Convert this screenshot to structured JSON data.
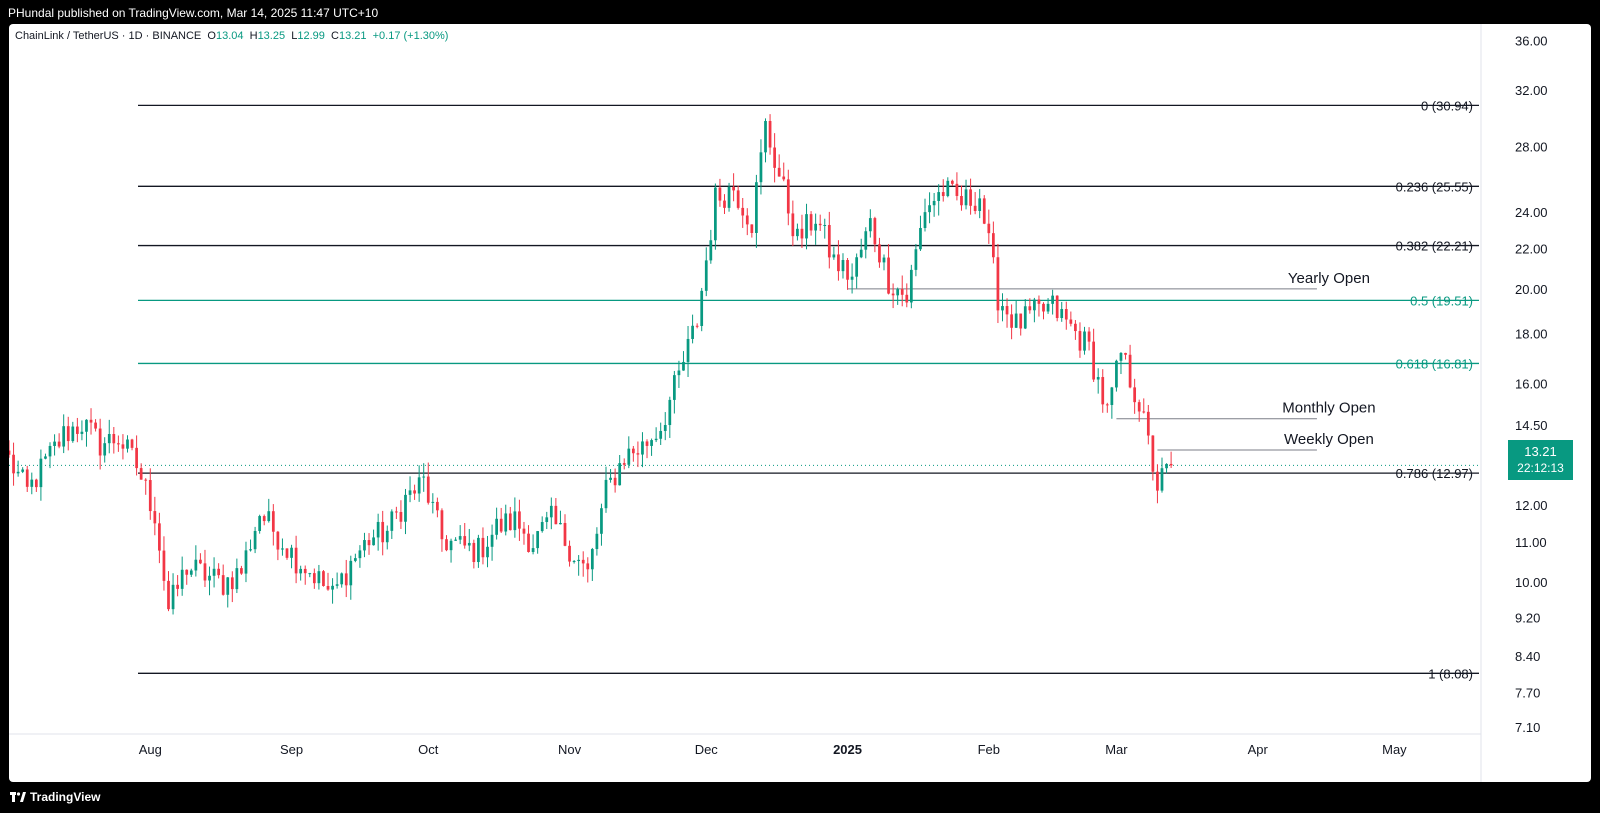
{
  "header": {
    "published_by": "PHundal published on TradingView.com, Mar 14, 2025 11:47 UTC+10"
  },
  "footer": {
    "brand": "TradingView"
  },
  "legend": {
    "symbol": "ChainLink / TetherUS · 1D · BINANCE",
    "o_label": "O",
    "o": "13.04",
    "h_label": "H",
    "h": "13.25",
    "l_label": "L",
    "l": "12.99",
    "c_label": "C",
    "c": "13.21",
    "change": "+0.17 (+1.30%)"
  },
  "last_price": {
    "price": "13.21",
    "countdown": "22:12:13"
  },
  "colors": {
    "up": "#089981",
    "down": "#f23645",
    "fib_green": "#089981",
    "fib_black": "#131722",
    "level": "#9598a1"
  },
  "chart_data": {
    "type": "candlestick",
    "title": "",
    "y_scale": "log",
    "y_ticks": [
      "36.00",
      "32.00",
      "28.00",
      "24.00",
      "22.00",
      "20.00",
      "18.00",
      "16.00",
      "14.50",
      "12.00",
      "11.00",
      "10.00",
      "9.20",
      "8.40",
      "7.70",
      "7.10"
    ],
    "x_ticks": [
      {
        "label": "Aug",
        "date": "2024-08-01",
        "bold": false
      },
      {
        "label": "Sep",
        "date": "2024-09-01",
        "bold": false
      },
      {
        "label": "Oct",
        "date": "2024-10-01",
        "bold": false
      },
      {
        "label": "Nov",
        "date": "2024-11-01",
        "bold": false
      },
      {
        "label": "Dec",
        "date": "2024-12-01",
        "bold": false
      },
      {
        "label": "2025",
        "date": "2025-01-01",
        "bold": true
      },
      {
        "label": "Feb",
        "date": "2025-02-01",
        "bold": false
      },
      {
        "label": "Mar",
        "date": "2025-03-01",
        "bold": false
      },
      {
        "label": "Apr",
        "date": "2025-04-01",
        "bold": false
      },
      {
        "label": "May",
        "date": "2025-05-01",
        "bold": false
      }
    ],
    "x_range": [
      "2024-07-01",
      "2025-05-20"
    ],
    "y_range": [
      7.0,
      37.5
    ],
    "fib_levels": [
      {
        "label": "0 (30.94)",
        "value": 30.94,
        "color": "black"
      },
      {
        "label": "0.236 (25.55)",
        "value": 25.55,
        "color": "black"
      },
      {
        "label": "0.382 (22.21)",
        "value": 22.21,
        "color": "black"
      },
      {
        "label": "0.5 (19.51)",
        "value": 19.51,
        "color": "green"
      },
      {
        "label": "0.618 (16.81)",
        "value": 16.81,
        "color": "green"
      },
      {
        "label": "0.786 (12.97)",
        "value": 12.97,
        "color": "black"
      },
      {
        "label": "1 (8.08)",
        "value": 8.08,
        "color": "black"
      }
    ],
    "levels": [
      {
        "label": "Yearly Open",
        "value": 20.05,
        "from": "2025-01-01",
        "to": "2025-04-14"
      },
      {
        "label": "Monthly Open",
        "value": 14.75,
        "from": "2025-03-01",
        "to": "2025-04-14"
      },
      {
        "label": "Weekly Open",
        "value": 13.7,
        "from": "2025-03-10",
        "to": "2025-04-14"
      }
    ],
    "series": [
      {
        "date": "2024-07-01",
        "close": 13.4
      },
      {
        "date": "2024-07-05",
        "close": 12.4
      },
      {
        "date": "2024-07-09",
        "close": 13.3
      },
      {
        "date": "2024-07-13",
        "close": 14.2
      },
      {
        "date": "2024-07-17",
        "close": 14.6
      },
      {
        "date": "2024-07-21",
        "close": 13.9
      },
      {
        "date": "2024-07-25",
        "close": 14.1
      },
      {
        "date": "2024-07-29",
        "close": 13.2
      },
      {
        "date": "2024-08-02",
        "close": 11.8
      },
      {
        "date": "2024-08-05",
        "close": 9.4
      },
      {
        "date": "2024-08-09",
        "close": 10.4
      },
      {
        "date": "2024-08-13",
        "close": 10.2
      },
      {
        "date": "2024-08-17",
        "close": 10.0
      },
      {
        "date": "2024-08-21",
        "close": 10.3
      },
      {
        "date": "2024-08-25",
        "close": 11.8
      },
      {
        "date": "2024-08-29",
        "close": 11.2
      },
      {
        "date": "2024-09-02",
        "close": 10.6
      },
      {
        "date": "2024-09-06",
        "close": 10.2
      },
      {
        "date": "2024-09-10",
        "close": 9.7
      },
      {
        "date": "2024-09-14",
        "close": 10.5
      },
      {
        "date": "2024-09-18",
        "close": 11.1
      },
      {
        "date": "2024-09-22",
        "close": 11.3
      },
      {
        "date": "2024-09-26",
        "close": 12.2
      },
      {
        "date": "2024-09-30",
        "close": 12.7
      },
      {
        "date": "2024-10-04",
        "close": 11.1
      },
      {
        "date": "2024-10-08",
        "close": 10.9
      },
      {
        "date": "2024-10-12",
        "close": 10.8
      },
      {
        "date": "2024-10-16",
        "close": 11.4
      },
      {
        "date": "2024-10-20",
        "close": 11.6
      },
      {
        "date": "2024-10-24",
        "close": 11.0
      },
      {
        "date": "2024-10-28",
        "close": 11.6
      },
      {
        "date": "2024-11-01",
        "close": 10.9
      },
      {
        "date": "2024-11-05",
        "close": 10.2
      },
      {
        "date": "2024-11-09",
        "close": 12.4
      },
      {
        "date": "2024-11-13",
        "close": 13.5
      },
      {
        "date": "2024-11-17",
        "close": 13.8
      },
      {
        "date": "2024-11-21",
        "close": 14.5
      },
      {
        "date": "2024-11-25",
        "close": 16.3
      },
      {
        "date": "2024-11-29",
        "close": 18.6
      },
      {
        "date": "2024-12-03",
        "close": 24.8
      },
      {
        "date": "2024-12-07",
        "close": 25.5
      },
      {
        "date": "2024-12-11",
        "close": 23.5
      },
      {
        "date": "2024-12-14",
        "close": 29.4
      },
      {
        "date": "2024-12-17",
        "close": 26.2
      },
      {
        "date": "2024-12-21",
        "close": 22.5
      },
      {
        "date": "2024-12-25",
        "close": 23.8
      },
      {
        "date": "2024-12-29",
        "close": 21.4
      },
      {
        "date": "2025-01-02",
        "close": 20.6
      },
      {
        "date": "2025-01-06",
        "close": 23.4
      },
      {
        "date": "2025-01-10",
        "close": 20.5
      },
      {
        "date": "2025-01-14",
        "close": 19.6
      },
      {
        "date": "2025-01-18",
        "close": 24.3
      },
      {
        "date": "2025-01-22",
        "close": 25.3
      },
      {
        "date": "2025-01-26",
        "close": 24.6
      },
      {
        "date": "2025-01-30",
        "close": 25.0
      },
      {
        "date": "2025-02-03",
        "close": 19.7
      },
      {
        "date": "2025-02-07",
        "close": 18.4
      },
      {
        "date": "2025-02-11",
        "close": 18.9
      },
      {
        "date": "2025-02-15",
        "close": 19.2
      },
      {
        "date": "2025-02-19",
        "close": 18.3
      },
      {
        "date": "2025-02-23",
        "close": 17.4
      },
      {
        "date": "2025-02-27",
        "close": 14.9
      },
      {
        "date": "2025-03-02",
        "close": 17.2
      },
      {
        "date": "2025-03-06",
        "close": 15.3
      },
      {
        "date": "2025-03-10",
        "close": 12.6
      },
      {
        "date": "2025-03-13",
        "close": 13.21
      }
    ]
  }
}
